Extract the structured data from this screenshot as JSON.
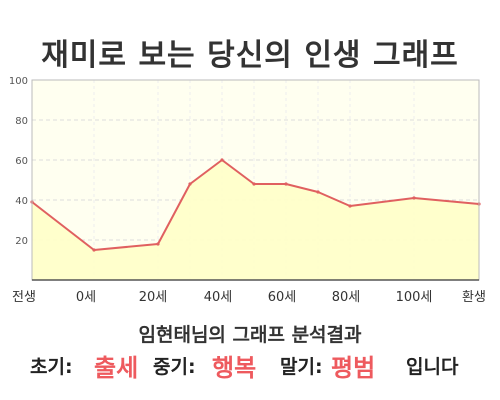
{
  "title": "재미로 보는 당신의 인생 그래프",
  "chart_data": {
    "type": "area",
    "x_labels": [
      "전생",
      "0세",
      "20세",
      "40세",
      "60세",
      "80세",
      "100세",
      "환생"
    ],
    "points": [
      {
        "x": "전생",
        "y": 39
      },
      {
        "x": "0세",
        "y": 15
      },
      {
        "x": "20세",
        "y": 18
      },
      {
        "x": "30세",
        "y": 48
      },
      {
        "x": "40세",
        "y": 60
      },
      {
        "x": "50세",
        "y": 48
      },
      {
        "x": "60세",
        "y": 48
      },
      {
        "x": "70세",
        "y": 44
      },
      {
        "x": "80세",
        "y": 37
      },
      {
        "x": "100세",
        "y": 41
      },
      {
        "x": "환생",
        "y": 38
      }
    ],
    "ylim": [
      0,
      100
    ],
    "yticks": [
      20,
      40,
      60,
      80,
      100
    ],
    "grid": true,
    "colors": {
      "line": "#e06060",
      "fill": "#ffffc8",
      "plot_bg": "#fffff0",
      "grid": "#dddddd"
    }
  },
  "subtitle": "임현태님의 그래프 분석결과",
  "summary": {
    "early_label": "초기:",
    "early_value": "출세",
    "mid_label": "중기:",
    "mid_value": "행복",
    "late_label": "말기:",
    "late_value": "평범",
    "ending": "입니다"
  }
}
